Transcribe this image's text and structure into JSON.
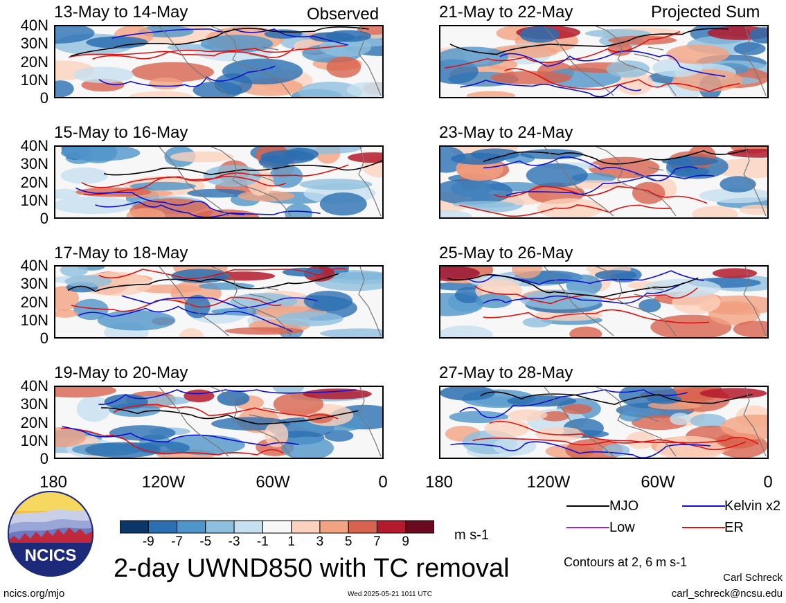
{
  "title": "2-day UWND850 with TC removal",
  "units": "m s-1",
  "left_column_label": "Observed",
  "right_column_label": "Projected Sum",
  "panels_left": [
    {
      "dates": "13-May to 14-May"
    },
    {
      "dates": "15-May to 16-May"
    },
    {
      "dates": "17-May to 18-May"
    },
    {
      "dates": "19-May to 20-May"
    }
  ],
  "panels_right": [
    {
      "dates": "21-May to 22-May"
    },
    {
      "dates": "23-May to 24-May"
    },
    {
      "dates": "25-May to 26-May"
    },
    {
      "dates": "27-May to 28-May"
    }
  ],
  "lat_labels": [
    "40N",
    "30N",
    "20N",
    "10N",
    "0"
  ],
  "lon_labels": [
    "180",
    "120W",
    "60W",
    "0"
  ],
  "colorbar": {
    "labels": [
      "-9",
      "-7",
      "-5",
      "-3",
      "-1",
      "1",
      "3",
      "5",
      "7",
      "9"
    ],
    "colors": [
      "#0b3768",
      "#2b6fb2",
      "#4f95c9",
      "#8ebfdd",
      "#c6e0ef",
      "#f7f7f7",
      "#fbd2bd",
      "#f2a382",
      "#d8634e",
      "#b31a2c",
      "#6b0a1f"
    ]
  },
  "legend": [
    {
      "label": "MJO",
      "color": "#000000"
    },
    {
      "label": "Kelvin x2",
      "color": "#1010d0"
    },
    {
      "label": "Low",
      "color": "#a020e0"
    },
    {
      "label": "ER",
      "color": "#e01010"
    }
  ],
  "contour_note": "Contours at 2, 6 m s-1",
  "author": "Carl Schreck",
  "email": "carl_schreck@ncsu.edu",
  "site": "ncics.org/mjo",
  "timestamp": "Wed 2025-05-21 1011 UTC",
  "logo_text": "NCICS"
}
